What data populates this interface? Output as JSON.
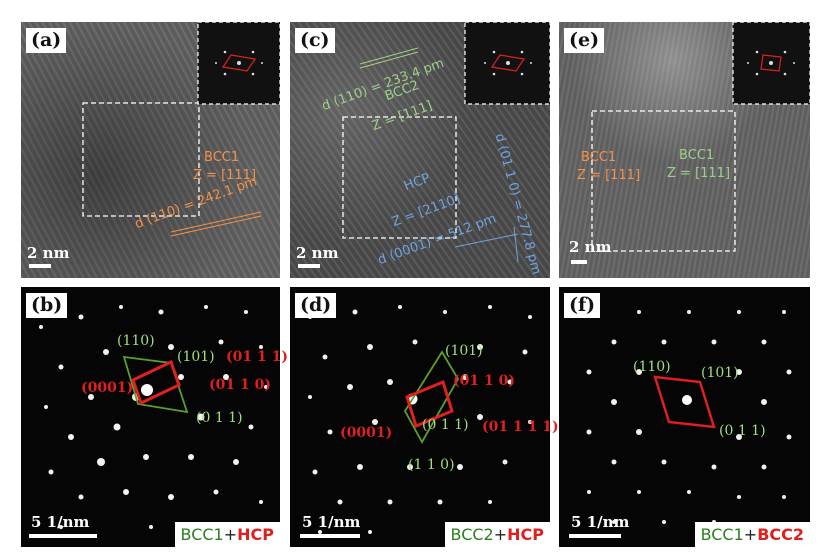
{
  "panels": {
    "a": {
      "tag": "(a)",
      "scale": "2 nm",
      "l1": "BCC1",
      "l2": "Z = [111]",
      "l3": "d (110) = 242.1 pm"
    },
    "c": {
      "tag": "(c)",
      "scale": "2 nm",
      "l1": "d (110) = 233.4 pm",
      "l2": "BCC2",
      "l3": "Z = [111]",
      "l4": "HCP",
      "l5": "Z = [2110]",
      "l6": "d (0001) = 512 pm",
      "l7": "d (01 1 0) = 277.8 pm"
    },
    "e": {
      "tag": "(e)",
      "scale": "2 nm",
      "l1": "BCC1",
      "l2": "Z = [111]",
      "l3": "BCC1",
      "l4": "Z = [111]"
    },
    "b": {
      "tag": "(b)",
      "scale": "5 1/nm",
      "idx1": "(110)",
      "idx2": "(101)",
      "idx3": "(01 1 1)",
      "idx4": "(0001)",
      "idx5": "(01 1 0)",
      "idx6": "(0 1 1)",
      "legend_a": "BCC1",
      "legend_plus": "+",
      "legend_b": "HCP"
    },
    "d": {
      "tag": "(d)",
      "scale": "5 1/nm",
      "idx1": "(101)",
      "idx2": "(01 1 0)",
      "idx3": "(0001)",
      "idx4": "(0 1 1)",
      "idx5": "(01 1 1 1)",
      "idx6": "(1 1 0)",
      "legend_a": "BCC2",
      "legend_plus": "+",
      "legend_b": "HCP"
    },
    "f": {
      "tag": "(f)",
      "scale": "5 1/nm",
      "idx1": "(110)",
      "idx2": "(101)",
      "idx3": "(0 1 1)",
      "legend_a": "BCC1",
      "legend_plus": "+",
      "legend_b": "BCC2"
    }
  },
  "colors": {
    "bcc1": "#f5914a",
    "green": "#9fd08a",
    "hcp": "#6fa3e0",
    "red": "#e0201f"
  }
}
